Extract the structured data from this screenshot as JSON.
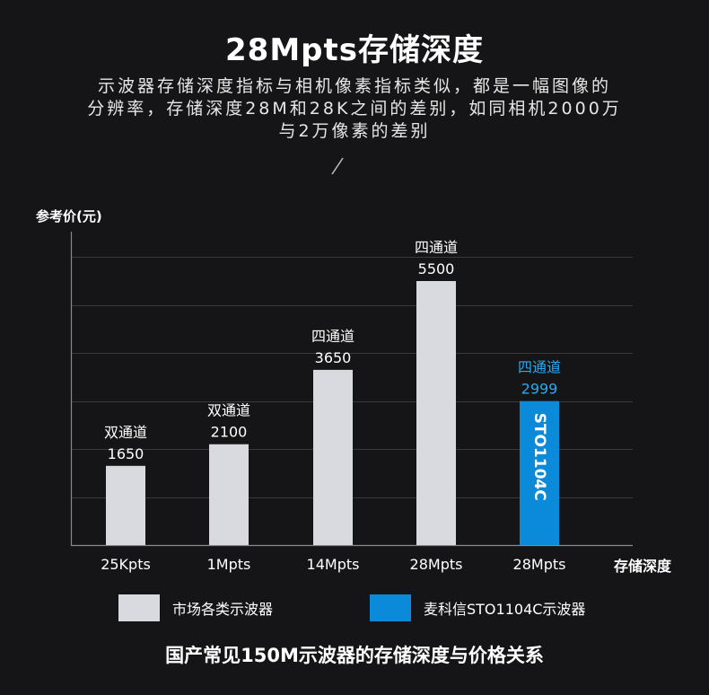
{
  "header": {
    "title": "28Mpts存储深度",
    "subtitle_lines": [
      "示波器存储深度指标与相机像素指标类似，都是一幅图像的",
      "分辨率，存储深度28M和28K之间的差别，如同相机2000万",
      "与2万像素的差别"
    ]
  },
  "colors": {
    "market": "#d8dae0",
    "highlight": "#0a8ad8",
    "highlight_text": "#29a9f0",
    "background": "#151517"
  },
  "chart_data": {
    "type": "bar",
    "ylabel": "参考价(元)",
    "xlabel": "存储深度",
    "ylim": [
      0,
      6000
    ],
    "categories": [
      "25Kpts",
      "1Mpts",
      "14Mpts",
      "28Mpts",
      "28Mpts"
    ],
    "values": [
      1650,
      2100,
      3650,
      5500,
      2999
    ],
    "channel_labels": [
      "双通道",
      "双通道",
      "四通道",
      "四通道",
      "四通道"
    ],
    "bar_inner_labels": [
      "",
      "",
      "",
      "",
      "STO1104C"
    ],
    "series_index": [
      0,
      0,
      0,
      0,
      1
    ],
    "series": [
      {
        "name": "市场各类示波器"
      },
      {
        "name": "麦科信STO1104C示波器"
      }
    ],
    "grid": true
  },
  "footer": "国产常见150M示波器的存储深度与价格关系"
}
